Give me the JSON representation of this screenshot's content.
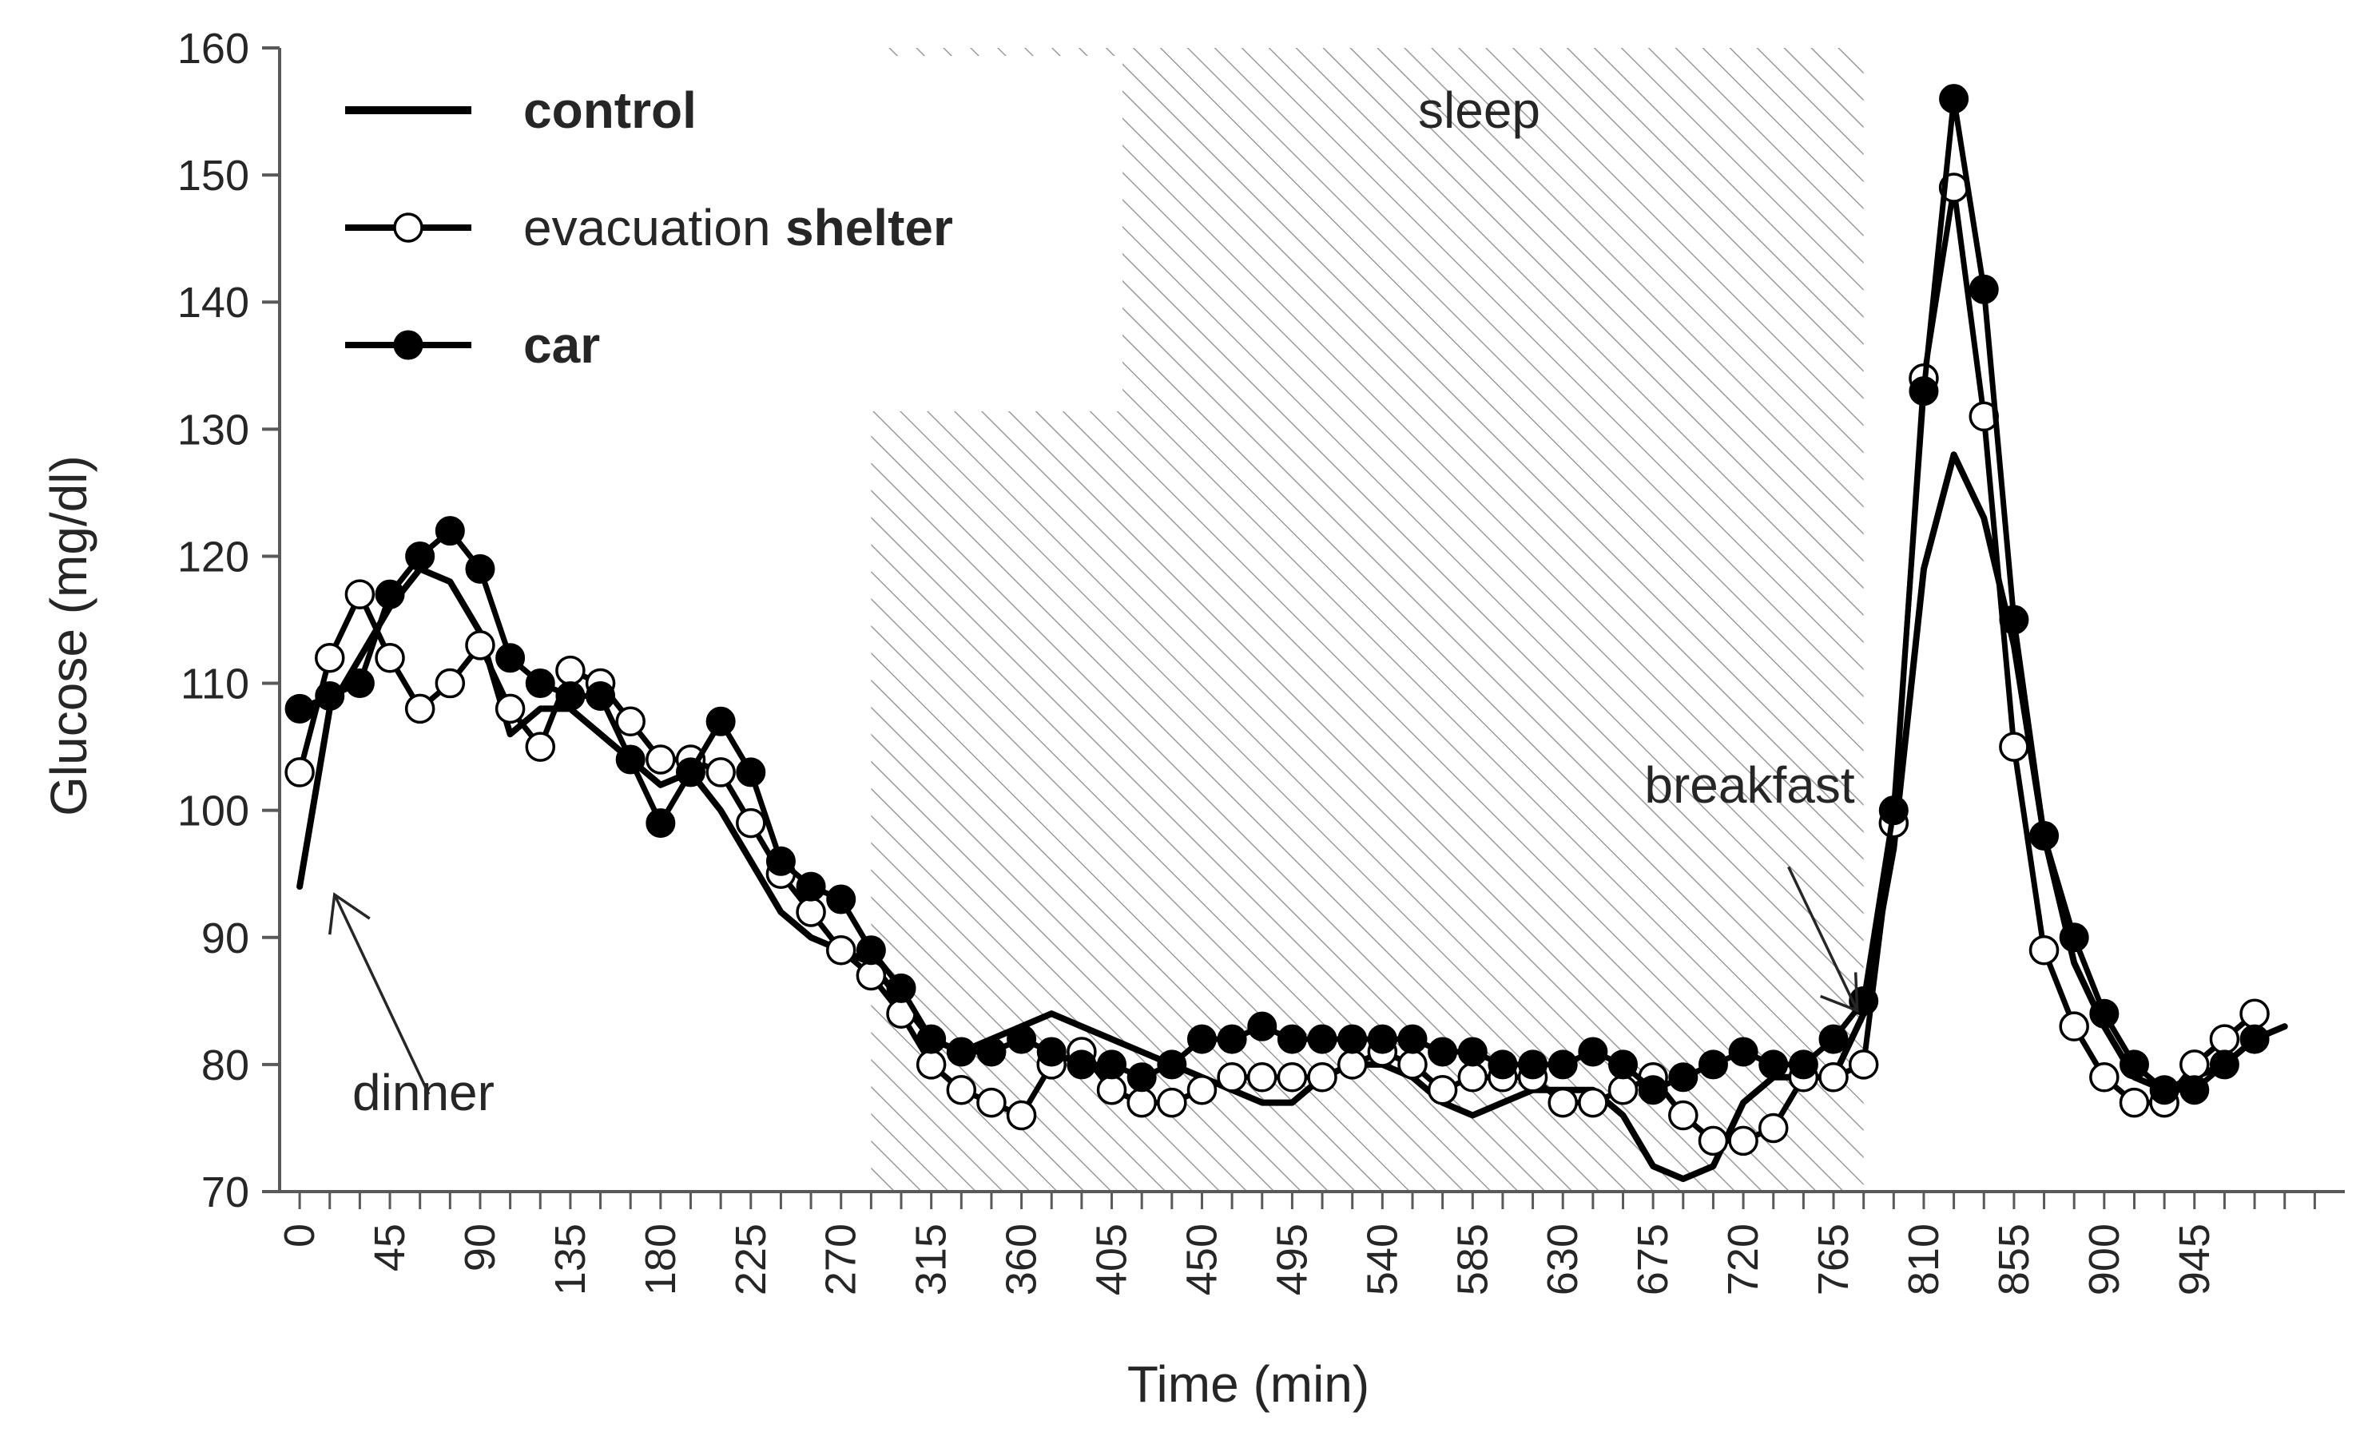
{
  "chart_data": {
    "type": "line",
    "xlabel": "Time (min)",
    "ylabel": "Glucose (mg/dl)",
    "xlim": [
      -10,
      1020
    ],
    "ylim": [
      70,
      160
    ],
    "yticks": [
      70,
      80,
      90,
      100,
      110,
      120,
      130,
      140,
      150,
      160
    ],
    "xticks": [
      0,
      45,
      90,
      135,
      180,
      225,
      270,
      315,
      360,
      405,
      450,
      495,
      540,
      585,
      630,
      675,
      720,
      765,
      810,
      855,
      900,
      945
    ],
    "shaded_region": {
      "label": "sleep",
      "x_start": 285,
      "x_end": 780
    },
    "annotations": [
      {
        "text": "dinner",
        "arrow_to": [
          15,
          94
        ]
      },
      {
        "text": "breakfast",
        "arrow_to": [
          780,
          86
        ]
      }
    ],
    "legend": {
      "position": "top-left",
      "entries": [
        {
          "series": "control",
          "label": "control"
        },
        {
          "series": "evacuation shelter",
          "label_normal": "evacuation",
          "label_bold": "shelter"
        },
        {
          "series": "car",
          "label": "car"
        }
      ]
    },
    "series": [
      {
        "name": "control",
        "marker": "none",
        "points": [
          [
            0,
            94
          ],
          [
            15,
            108
          ],
          [
            30,
            112
          ],
          [
            45,
            116
          ],
          [
            60,
            119
          ],
          [
            75,
            118
          ],
          [
            90,
            114
          ],
          [
            105,
            106
          ],
          [
            120,
            108
          ],
          [
            135,
            108
          ],
          [
            150,
            106
          ],
          [
            165,
            104
          ],
          [
            180,
            102
          ],
          [
            195,
            103
          ],
          [
            210,
            100
          ],
          [
            225,
            96
          ],
          [
            240,
            92
          ],
          [
            255,
            90
          ],
          [
            270,
            89
          ],
          [
            285,
            88
          ],
          [
            300,
            85
          ],
          [
            315,
            82
          ],
          [
            330,
            81
          ],
          [
            345,
            82
          ],
          [
            360,
            83
          ],
          [
            375,
            84
          ],
          [
            390,
            83
          ],
          [
            405,
            82
          ],
          [
            420,
            81
          ],
          [
            435,
            80
          ],
          [
            450,
            79
          ],
          [
            465,
            78
          ],
          [
            480,
            77
          ],
          [
            495,
            77
          ],
          [
            510,
            79
          ],
          [
            525,
            80
          ],
          [
            540,
            80
          ],
          [
            555,
            79
          ],
          [
            570,
            77
          ],
          [
            585,
            76
          ],
          [
            600,
            77
          ],
          [
            615,
            78
          ],
          [
            630,
            78
          ],
          [
            645,
            78
          ],
          [
            660,
            76
          ],
          [
            675,
            72
          ],
          [
            690,
            71
          ],
          [
            705,
            72
          ],
          [
            720,
            77
          ],
          [
            735,
            79
          ],
          [
            750,
            79
          ],
          [
            765,
            79
          ],
          [
            780,
            84
          ],
          [
            795,
            97
          ],
          [
            810,
            119
          ],
          [
            825,
            128
          ],
          [
            840,
            123
          ],
          [
            855,
            113
          ],
          [
            870,
            98
          ],
          [
            885,
            88
          ],
          [
            900,
            83
          ],
          [
            915,
            79
          ],
          [
            930,
            78
          ],
          [
            945,
            79
          ],
          [
            960,
            80
          ],
          [
            975,
            82
          ],
          [
            990,
            83
          ]
        ]
      },
      {
        "name": "evacuation shelter",
        "marker": "open-circle",
        "points": [
          [
            0,
            103
          ],
          [
            15,
            112
          ],
          [
            30,
            117
          ],
          [
            45,
            112
          ],
          [
            60,
            108
          ],
          [
            75,
            110
          ],
          [
            90,
            113
          ],
          [
            105,
            108
          ],
          [
            120,
            105
          ],
          [
            135,
            111
          ],
          [
            150,
            110
          ],
          [
            165,
            107
          ],
          [
            180,
            104
          ],
          [
            195,
            104
          ],
          [
            210,
            103
          ],
          [
            225,
            99
          ],
          [
            240,
            95
          ],
          [
            255,
            92
          ],
          [
            270,
            89
          ],
          [
            285,
            87
          ],
          [
            300,
            84
          ],
          [
            315,
            80
          ],
          [
            330,
            78
          ],
          [
            345,
            77
          ],
          [
            360,
            76
          ],
          [
            375,
            80
          ],
          [
            390,
            81
          ],
          [
            405,
            78
          ],
          [
            420,
            77
          ],
          [
            435,
            77
          ],
          [
            450,
            78
          ],
          [
            465,
            79
          ],
          [
            480,
            79
          ],
          [
            495,
            79
          ],
          [
            510,
            79
          ],
          [
            525,
            80
          ],
          [
            540,
            81
          ],
          [
            555,
            80
          ],
          [
            570,
            78
          ],
          [
            585,
            79
          ],
          [
            600,
            79
          ],
          [
            615,
            79
          ],
          [
            630,
            77
          ],
          [
            645,
            77
          ],
          [
            660,
            78
          ],
          [
            675,
            79
          ],
          [
            690,
            76
          ],
          [
            705,
            74
          ],
          [
            720,
            74
          ],
          [
            735,
            75
          ],
          [
            750,
            79
          ],
          [
            765,
            79
          ],
          [
            780,
            80
          ],
          [
            795,
            99
          ],
          [
            810,
            134
          ],
          [
            825,
            149
          ],
          [
            840,
            131
          ],
          [
            855,
            105
          ],
          [
            870,
            89
          ],
          [
            885,
            83
          ],
          [
            900,
            79
          ],
          [
            915,
            77
          ],
          [
            930,
            77
          ],
          [
            945,
            80
          ],
          [
            960,
            82
          ],
          [
            975,
            84
          ]
        ]
      },
      {
        "name": "car",
        "marker": "filled-circle",
        "points": [
          [
            0,
            108
          ],
          [
            15,
            109
          ],
          [
            30,
            110
          ],
          [
            45,
            117
          ],
          [
            60,
            120
          ],
          [
            75,
            122
          ],
          [
            90,
            119
          ],
          [
            105,
            112
          ],
          [
            120,
            110
          ],
          [
            135,
            109
          ],
          [
            150,
            109
          ],
          [
            165,
            104
          ],
          [
            180,
            99
          ],
          [
            195,
            103
          ],
          [
            210,
            107
          ],
          [
            225,
            103
          ],
          [
            240,
            96
          ],
          [
            255,
            94
          ],
          [
            270,
            93
          ],
          [
            285,
            89
          ],
          [
            300,
            86
          ],
          [
            315,
            82
          ],
          [
            330,
            81
          ],
          [
            345,
            81
          ],
          [
            360,
            82
          ],
          [
            375,
            81
          ],
          [
            390,
            80
          ],
          [
            405,
            80
          ],
          [
            420,
            79
          ],
          [
            435,
            80
          ],
          [
            450,
            82
          ],
          [
            465,
            82
          ],
          [
            480,
            83
          ],
          [
            495,
            82
          ],
          [
            510,
            82
          ],
          [
            525,
            82
          ],
          [
            540,
            82
          ],
          [
            555,
            82
          ],
          [
            570,
            81
          ],
          [
            585,
            81
          ],
          [
            600,
            80
          ],
          [
            615,
            80
          ],
          [
            630,
            80
          ],
          [
            645,
            81
          ],
          [
            660,
            80
          ],
          [
            675,
            78
          ],
          [
            690,
            79
          ],
          [
            705,
            80
          ],
          [
            720,
            81
          ],
          [
            735,
            80
          ],
          [
            750,
            80
          ],
          [
            765,
            82
          ],
          [
            780,
            85
          ],
          [
            795,
            100
          ],
          [
            810,
            133
          ],
          [
            825,
            156
          ],
          [
            840,
            141
          ],
          [
            855,
            115
          ],
          [
            870,
            98
          ],
          [
            885,
            90
          ],
          [
            900,
            84
          ],
          [
            915,
            80
          ],
          [
            930,
            78
          ],
          [
            945,
            78
          ],
          [
            960,
            80
          ],
          [
            975,
            82
          ]
        ]
      }
    ]
  }
}
